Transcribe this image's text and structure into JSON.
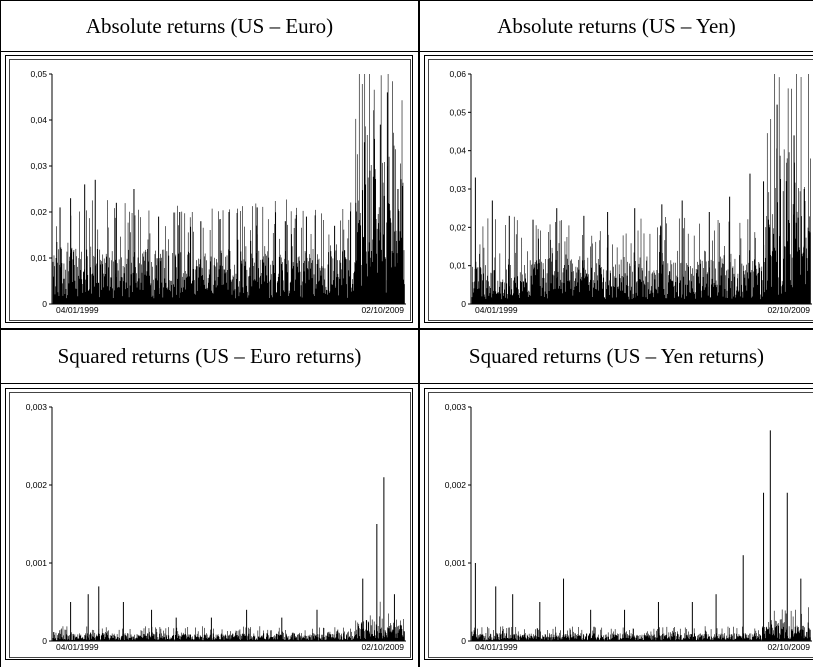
{
  "headers": {
    "top_left": "Absolute returns (US – Euro)",
    "top_right": "Absolute returns (US – Yen)",
    "bottom_left": "Squared returns (US – Euro returns)",
    "bottom_right": "Squared returns (US – Yen returns)"
  },
  "colors": {
    "series": "#000000",
    "axis": "#000000",
    "frame": "#000000"
  },
  "chart_data": [
    {
      "type": "line",
      "panel": "top_left",
      "x_start_label": "04/01/1999",
      "x_end_label": "02/10/2009",
      "ylim": [
        0,
        0.05
      ],
      "yticks": [
        "0",
        "0,01",
        "0,02",
        "0,03",
        "0,04",
        "0,05"
      ],
      "ytick_values": [
        0,
        0.01,
        0.02,
        0.03,
        0.04,
        0.05
      ],
      "baseline_level": 0.006,
      "spikes": [
        [
          0.02,
          0.021
        ],
        [
          0.05,
          0.023
        ],
        [
          0.09,
          0.026
        ],
        [
          0.12,
          0.027
        ],
        [
          0.18,
          0.022
        ],
        [
          0.23,
          0.025
        ],
        [
          0.3,
          0.019
        ],
        [
          0.36,
          0.02
        ],
        [
          0.42,
          0.018
        ],
        [
          0.5,
          0.02
        ],
        [
          0.58,
          0.021
        ],
        [
          0.66,
          0.018
        ],
        [
          0.72,
          0.019
        ],
        [
          0.8,
          0.017
        ],
        [
          0.86,
          0.022
        ],
        [
          0.9,
          0.029
        ],
        [
          0.93,
          0.039
        ],
        [
          0.95,
          0.046
        ],
        [
          0.98,
          0.025
        ]
      ]
    },
    {
      "type": "line",
      "panel": "top_right",
      "x_start_label": "04/01/1999",
      "x_end_label": "02/10/2009",
      "ylim": [
        0,
        0.06
      ],
      "yticks": [
        "0",
        "0,01",
        "0,02",
        "0,03",
        "0,04",
        "0,05",
        "0,06"
      ],
      "ytick_values": [
        0,
        0.01,
        0.02,
        0.03,
        0.04,
        0.05,
        0.06
      ],
      "baseline_level": 0.006,
      "spikes": [
        [
          0.01,
          0.033
        ],
        [
          0.06,
          0.027
        ],
        [
          0.11,
          0.023
        ],
        [
          0.18,
          0.022
        ],
        [
          0.25,
          0.025
        ],
        [
          0.33,
          0.023
        ],
        [
          0.4,
          0.024
        ],
        [
          0.48,
          0.025
        ],
        [
          0.56,
          0.026
        ],
        [
          0.62,
          0.027
        ],
        [
          0.7,
          0.024
        ],
        [
          0.76,
          0.028
        ],
        [
          0.82,
          0.034
        ],
        [
          0.86,
          0.032
        ],
        [
          0.9,
          0.052
        ],
        [
          0.95,
          0.044
        ],
        [
          0.98,
          0.03
        ]
      ]
    },
    {
      "type": "line",
      "panel": "bottom_left",
      "x_start_label": "04/01/1999",
      "x_end_label": "02/10/2009",
      "ylim": [
        0,
        0.003
      ],
      "yticks": [
        "0",
        "0,001",
        "0,002",
        "0,003"
      ],
      "ytick_values": [
        0,
        0.001,
        0.002,
        0.003
      ],
      "baseline_level": 5e-05,
      "spikes": [
        [
          0.05,
          0.0005
        ],
        [
          0.1,
          0.0006
        ],
        [
          0.13,
          0.0007
        ],
        [
          0.2,
          0.0005
        ],
        [
          0.28,
          0.0004
        ],
        [
          0.35,
          0.0003
        ],
        [
          0.45,
          0.0003
        ],
        [
          0.55,
          0.0004
        ],
        [
          0.65,
          0.0003
        ],
        [
          0.75,
          0.0004
        ],
        [
          0.88,
          0.0008
        ],
        [
          0.92,
          0.0015
        ],
        [
          0.94,
          0.0021
        ],
        [
          0.97,
          0.0006
        ]
      ]
    },
    {
      "type": "line",
      "panel": "bottom_right",
      "x_start_label": "04/01/1999",
      "x_end_label": "02/10/2009",
      "ylim": [
        0,
        0.003
      ],
      "yticks": [
        "0",
        "0,001",
        "0,002",
        "0,003"
      ],
      "ytick_values": [
        0,
        0.001,
        0.002,
        0.003
      ],
      "baseline_level": 5e-05,
      "spikes": [
        [
          0.01,
          0.001
        ],
        [
          0.07,
          0.0007
        ],
        [
          0.12,
          0.0006
        ],
        [
          0.2,
          0.0005
        ],
        [
          0.27,
          0.0008
        ],
        [
          0.35,
          0.0004
        ],
        [
          0.45,
          0.0004
        ],
        [
          0.55,
          0.0005
        ],
        [
          0.65,
          0.0005
        ],
        [
          0.72,
          0.0006
        ],
        [
          0.8,
          0.0011
        ],
        [
          0.86,
          0.0019
        ],
        [
          0.88,
          0.0027
        ],
        [
          0.93,
          0.0019
        ],
        [
          0.97,
          0.0008
        ]
      ]
    }
  ]
}
